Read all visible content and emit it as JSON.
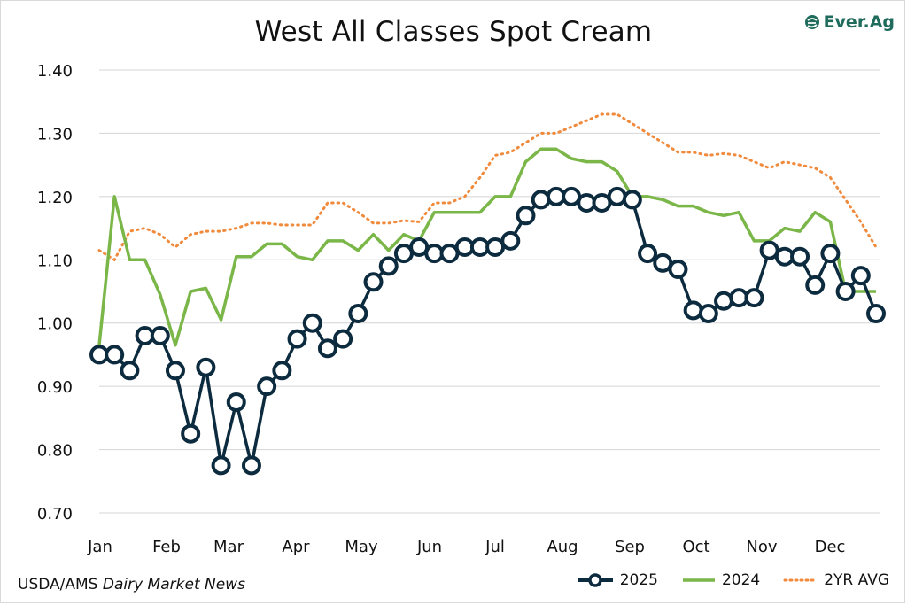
{
  "chart_data": {
    "type": "line",
    "title": "West All Classes Spot Cream",
    "ylim": [
      0.7,
      1.4
    ],
    "yticks": [
      "0.70",
      "0.80",
      "0.90",
      "1.00",
      "1.10",
      "1.20",
      "1.30",
      "1.40"
    ],
    "grid": "horizontal",
    "legend_position": "bottom-right",
    "months": [
      "Jan",
      "Feb",
      "Mar",
      "Apr",
      "May",
      "Jun",
      "Jul",
      "Aug",
      "Sep",
      "Oct",
      "Nov",
      "Dec"
    ],
    "series": [
      {
        "name": "2025",
        "color": "#0d2b3e",
        "style": "line-markers",
        "values": [
          0.95,
          0.95,
          0.925,
          0.98,
          0.98,
          0.925,
          0.825,
          0.93,
          0.775,
          0.875,
          0.775,
          0.9,
          0.925,
          0.975,
          1.0,
          0.96,
          0.975,
          1.015,
          1.065,
          1.09,
          1.11,
          1.12,
          1.11,
          1.11,
          1.12,
          1.12,
          1.12,
          1.13,
          1.17,
          1.195,
          1.2,
          1.2,
          1.19,
          1.19,
          1.2,
          1.195,
          1.11,
          1.095,
          1.085,
          1.02,
          1.015,
          1.035,
          1.04,
          1.04,
          1.115,
          1.105,
          1.105,
          1.06,
          1.11,
          1.05,
          1.075,
          1.015
        ]
      },
      {
        "name": "2024",
        "color": "#7ab648",
        "style": "line",
        "values": [
          0.965,
          1.2,
          1.1,
          1.1,
          1.045,
          0.965,
          1.05,
          1.055,
          1.005,
          1.105,
          1.105,
          1.125,
          1.125,
          1.105,
          1.1,
          1.13,
          1.13,
          1.115,
          1.14,
          1.115,
          1.14,
          1.13,
          1.175,
          1.175,
          1.175,
          1.175,
          1.2,
          1.2,
          1.255,
          1.275,
          1.275,
          1.26,
          1.255,
          1.255,
          1.24,
          1.2,
          1.2,
          1.195,
          1.185,
          1.185,
          1.175,
          1.17,
          1.175,
          1.13,
          1.13,
          1.15,
          1.145,
          1.175,
          1.16,
          1.05,
          1.05,
          1.05
        ]
      },
      {
        "name": "2YR AVG",
        "color": "#f08a3c",
        "style": "dotted",
        "values": [
          1.115,
          1.1,
          1.145,
          1.15,
          1.14,
          1.12,
          1.14,
          1.145,
          1.145,
          1.15,
          1.158,
          1.158,
          1.155,
          1.155,
          1.155,
          1.19,
          1.19,
          1.175,
          1.158,
          1.158,
          1.162,
          1.16,
          1.19,
          1.19,
          1.2,
          1.23,
          1.265,
          1.27,
          1.285,
          1.3,
          1.3,
          1.31,
          1.32,
          1.33,
          1.33,
          1.315,
          1.3,
          1.285,
          1.27,
          1.27,
          1.265,
          1.268,
          1.265,
          1.255,
          1.245,
          1.255,
          1.25,
          1.245,
          1.23,
          1.195,
          1.16,
          1.12
        ]
      }
    ]
  },
  "source": {
    "prefix": "USDA/AMS ",
    "italic": "Dairy Market News"
  },
  "logo": {
    "text": "Ever.Ag"
  }
}
